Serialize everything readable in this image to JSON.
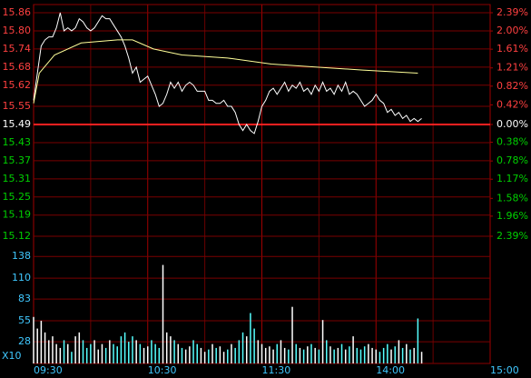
{
  "chart_data": {
    "type": "line",
    "xlim": [
      0,
      240
    ],
    "xticks": [
      {
        "value": 0,
        "label": "09:30"
      },
      {
        "value": 60,
        "label": "10:30"
      },
      {
        "value": 120,
        "label": "11:30"
      },
      {
        "value": 180,
        "label": "14:00"
      },
      {
        "value": 240,
        "label": "15:00"
      }
    ],
    "ylim": [
      15.12,
      15.86
    ],
    "yticks": [
      15.86,
      {
        "value": 15.8,
        "label": "15.80"
      },
      15.74,
      15.68,
      15.62,
      15.55,
      15.49,
      15.43,
      15.37,
      15.31,
      15.25,
      15.19,
      15.12
    ],
    "y2lim": [
      -2.39,
      2.39
    ],
    "y2ticks": [
      {
        "value": 2.39,
        "label": "2.39%"
      },
      {
        "value": 2.0,
        "label": "2.00%"
      },
      {
        "value": 1.61,
        "label": "1.61%"
      },
      {
        "value": 1.21,
        "label": "1.21%"
      },
      {
        "value": 0.82,
        "label": "0.82%"
      },
      {
        "value": 0.42,
        "label": "0.42%"
      },
      {
        "value": 0,
        "label": "0.00%"
      },
      {
        "value": -0.38,
        "label": "0.38%"
      },
      {
        "value": -0.78,
        "label": "0.78%"
      },
      {
        "value": -1.17,
        "label": "1.17%"
      },
      {
        "value": -1.58,
        "label": "1.58%"
      },
      {
        "value": -1.96,
        "label": "1.96%"
      },
      {
        "value": -2.39,
        "label": "2.39%"
      }
    ],
    "vlim": [
      0,
      164
    ],
    "vticks": [
      28,
      55,
      83,
      110,
      138
    ],
    "volume_unit": "X10",
    "grid": true,
    "up_color": "#ffffff",
    "down_color": "#55ffff",
    "rise_color": "#ff4040",
    "fall_color": "#00d000",
    "flat_color": "#ffffff",
    "x": [
      0,
      2,
      4,
      6,
      8,
      10,
      12,
      14,
      16,
      18,
      20,
      22,
      24,
      26,
      28,
      30,
      32,
      34,
      36,
      38,
      40,
      42,
      44,
      46,
      48,
      50,
      52,
      54,
      56,
      58,
      60,
      62,
      64,
      66,
      68,
      70,
      72,
      74,
      76,
      78,
      80,
      82,
      84,
      86,
      88,
      90,
      92,
      94,
      96,
      98,
      100,
      102,
      104,
      106,
      108,
      110,
      112,
      114,
      116,
      118,
      120,
      122,
      124,
      126,
      128,
      130,
      132,
      134,
      136,
      138,
      140,
      142,
      144,
      146,
      148,
      150,
      152,
      154,
      156,
      158,
      160,
      162,
      164,
      166,
      168,
      170,
      172,
      174,
      176,
      178,
      180,
      182,
      184,
      186,
      188,
      190,
      192,
      194,
      196,
      198,
      200,
      202,
      204
    ],
    "series": [
      {
        "name": "price",
        "color": "#ffffff",
        "values": [
          15.57,
          15.66,
          15.75,
          15.77,
          15.78,
          15.78,
          15.81,
          15.86,
          15.8,
          15.81,
          15.8,
          15.81,
          15.84,
          15.83,
          15.81,
          15.8,
          15.81,
          15.83,
          15.85,
          15.84,
          15.84,
          15.82,
          15.8,
          15.78,
          15.75,
          15.71,
          15.66,
          15.68,
          15.63,
          15.64,
          15.65,
          15.62,
          15.59,
          15.55,
          15.56,
          15.59,
          15.63,
          15.61,
          15.63,
          15.6,
          15.62,
          15.63,
          15.62,
          15.6,
          15.6,
          15.6,
          15.57,
          15.57,
          15.56,
          15.56,
          15.57,
          15.55,
          15.55,
          15.53,
          15.49,
          15.47,
          15.49,
          15.47,
          15.46,
          15.5,
          15.55,
          15.57,
          15.6,
          15.61,
          15.59,
          15.61,
          15.63,
          15.6,
          15.62,
          15.61,
          15.63,
          15.6,
          15.61,
          15.59,
          15.62,
          15.6,
          15.63,
          15.6,
          15.61,
          15.59,
          15.62,
          15.6,
          15.63,
          15.59,
          15.6,
          15.59,
          15.57,
          15.55,
          15.56,
          15.57,
          15.59,
          15.57,
          15.56,
          15.53,
          15.54,
          15.52,
          15.53,
          15.51,
          15.52,
          15.5,
          15.51,
          15.5,
          15.51
        ]
      },
      {
        "name": "average",
        "color": "#ffff99",
        "x": [
          0,
          3,
          11,
          25,
          44,
          52,
          63,
          78,
          102,
          125,
          149,
          173,
          202
        ],
        "values": [
          15.56,
          15.66,
          15.72,
          15.76,
          15.77,
          15.77,
          15.74,
          15.72,
          15.71,
          15.69,
          15.68,
          15.67,
          15.66
        ]
      },
      {
        "name": "volume",
        "axis": "volume",
        "values": [
          60,
          45,
          55,
          40,
          30,
          35,
          25,
          20,
          30,
          25,
          15,
          35,
          40,
          30,
          20,
          25,
          30,
          18,
          25,
          20,
          30,
          25,
          22,
          35,
          40,
          28,
          35,
          30,
          25,
          20,
          22,
          30,
          25,
          20,
          127,
          40,
          35,
          30,
          25,
          20,
          18,
          22,
          30,
          25,
          20,
          15,
          18,
          25,
          20,
          22,
          15,
          18,
          25,
          20,
          30,
          40,
          35,
          65,
          45,
          30,
          25,
          20,
          22,
          18,
          25,
          30,
          20,
          18,
          73,
          25,
          20,
          18,
          22,
          25,
          20,
          18,
          56,
          30,
          22,
          18,
          20,
          25,
          18,
          22,
          35,
          20,
          18,
          22,
          25,
          20,
          18,
          15,
          20,
          25,
          18,
          22,
          30,
          20,
          25,
          18,
          20,
          58,
          15
        ]
      }
    ]
  }
}
